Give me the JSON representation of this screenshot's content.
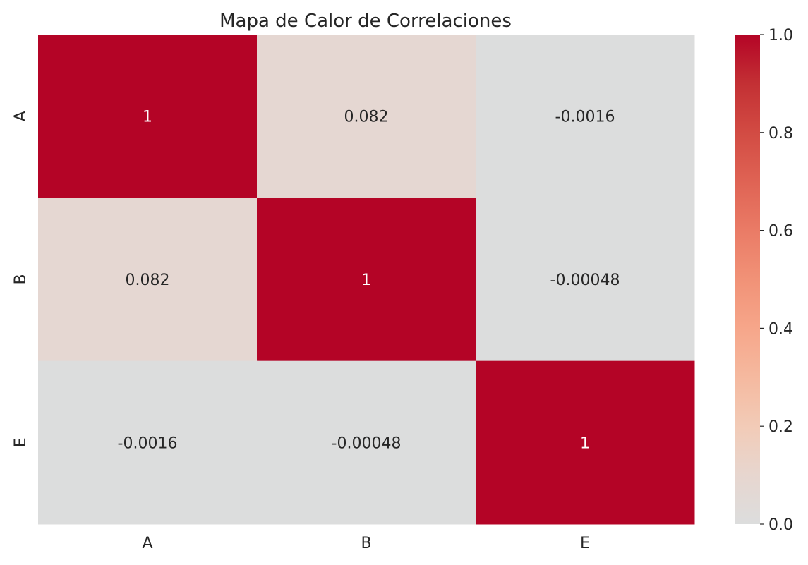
{
  "chart_data": {
    "type": "heatmap",
    "title": "Mapa de Calor de Correlaciones",
    "xlabel": "",
    "ylabel": "",
    "x_categories": [
      "A",
      "B",
      "E"
    ],
    "y_categories": [
      "A",
      "B",
      "E"
    ],
    "values": [
      [
        1,
        0.082,
        -0.0016
      ],
      [
        0.082,
        1,
        -0.00048
      ],
      [
        -0.0016,
        -0.00048,
        1
      ]
    ],
    "cell_labels": [
      [
        "1",
        "0.082",
        "-0.0016"
      ],
      [
        "0.082",
        "1",
        "-0.00048"
      ],
      [
        "-0.0016",
        "-0.00048",
        "1"
      ]
    ],
    "colorbar": {
      "min": 0.0,
      "max": 1.0,
      "ticks": [
        0.0,
        0.2,
        0.4,
        0.6,
        0.8,
        1.0
      ],
      "tick_labels": [
        "0.0",
        "0.2",
        "0.4",
        "0.6",
        "0.8",
        "1.0"
      ]
    },
    "colormap": "coolwarm-center-zero",
    "colorscale": [
      {
        "v": 0.0,
        "color": "#dcdddd"
      },
      {
        "v": 0.1,
        "color": "#e7d6cf"
      },
      {
        "v": 0.2,
        "color": "#f2cbb7"
      },
      {
        "v": 0.3,
        "color": "#f5b99f"
      },
      {
        "v": 0.4,
        "color": "#f6a68a"
      },
      {
        "v": 0.5,
        "color": "#f19277"
      },
      {
        "v": 0.6,
        "color": "#ea7b66"
      },
      {
        "v": 0.7,
        "color": "#df6354"
      },
      {
        "v": 0.8,
        "color": "#d24b43"
      },
      {
        "v": 0.9,
        "color": "#c33034"
      },
      {
        "v": 1.0,
        "color": "#b40426"
      }
    ],
    "text_color_dark": "#262626",
    "text_color_light": "#ffffff",
    "grid": false,
    "legend": "colorbar-right"
  }
}
